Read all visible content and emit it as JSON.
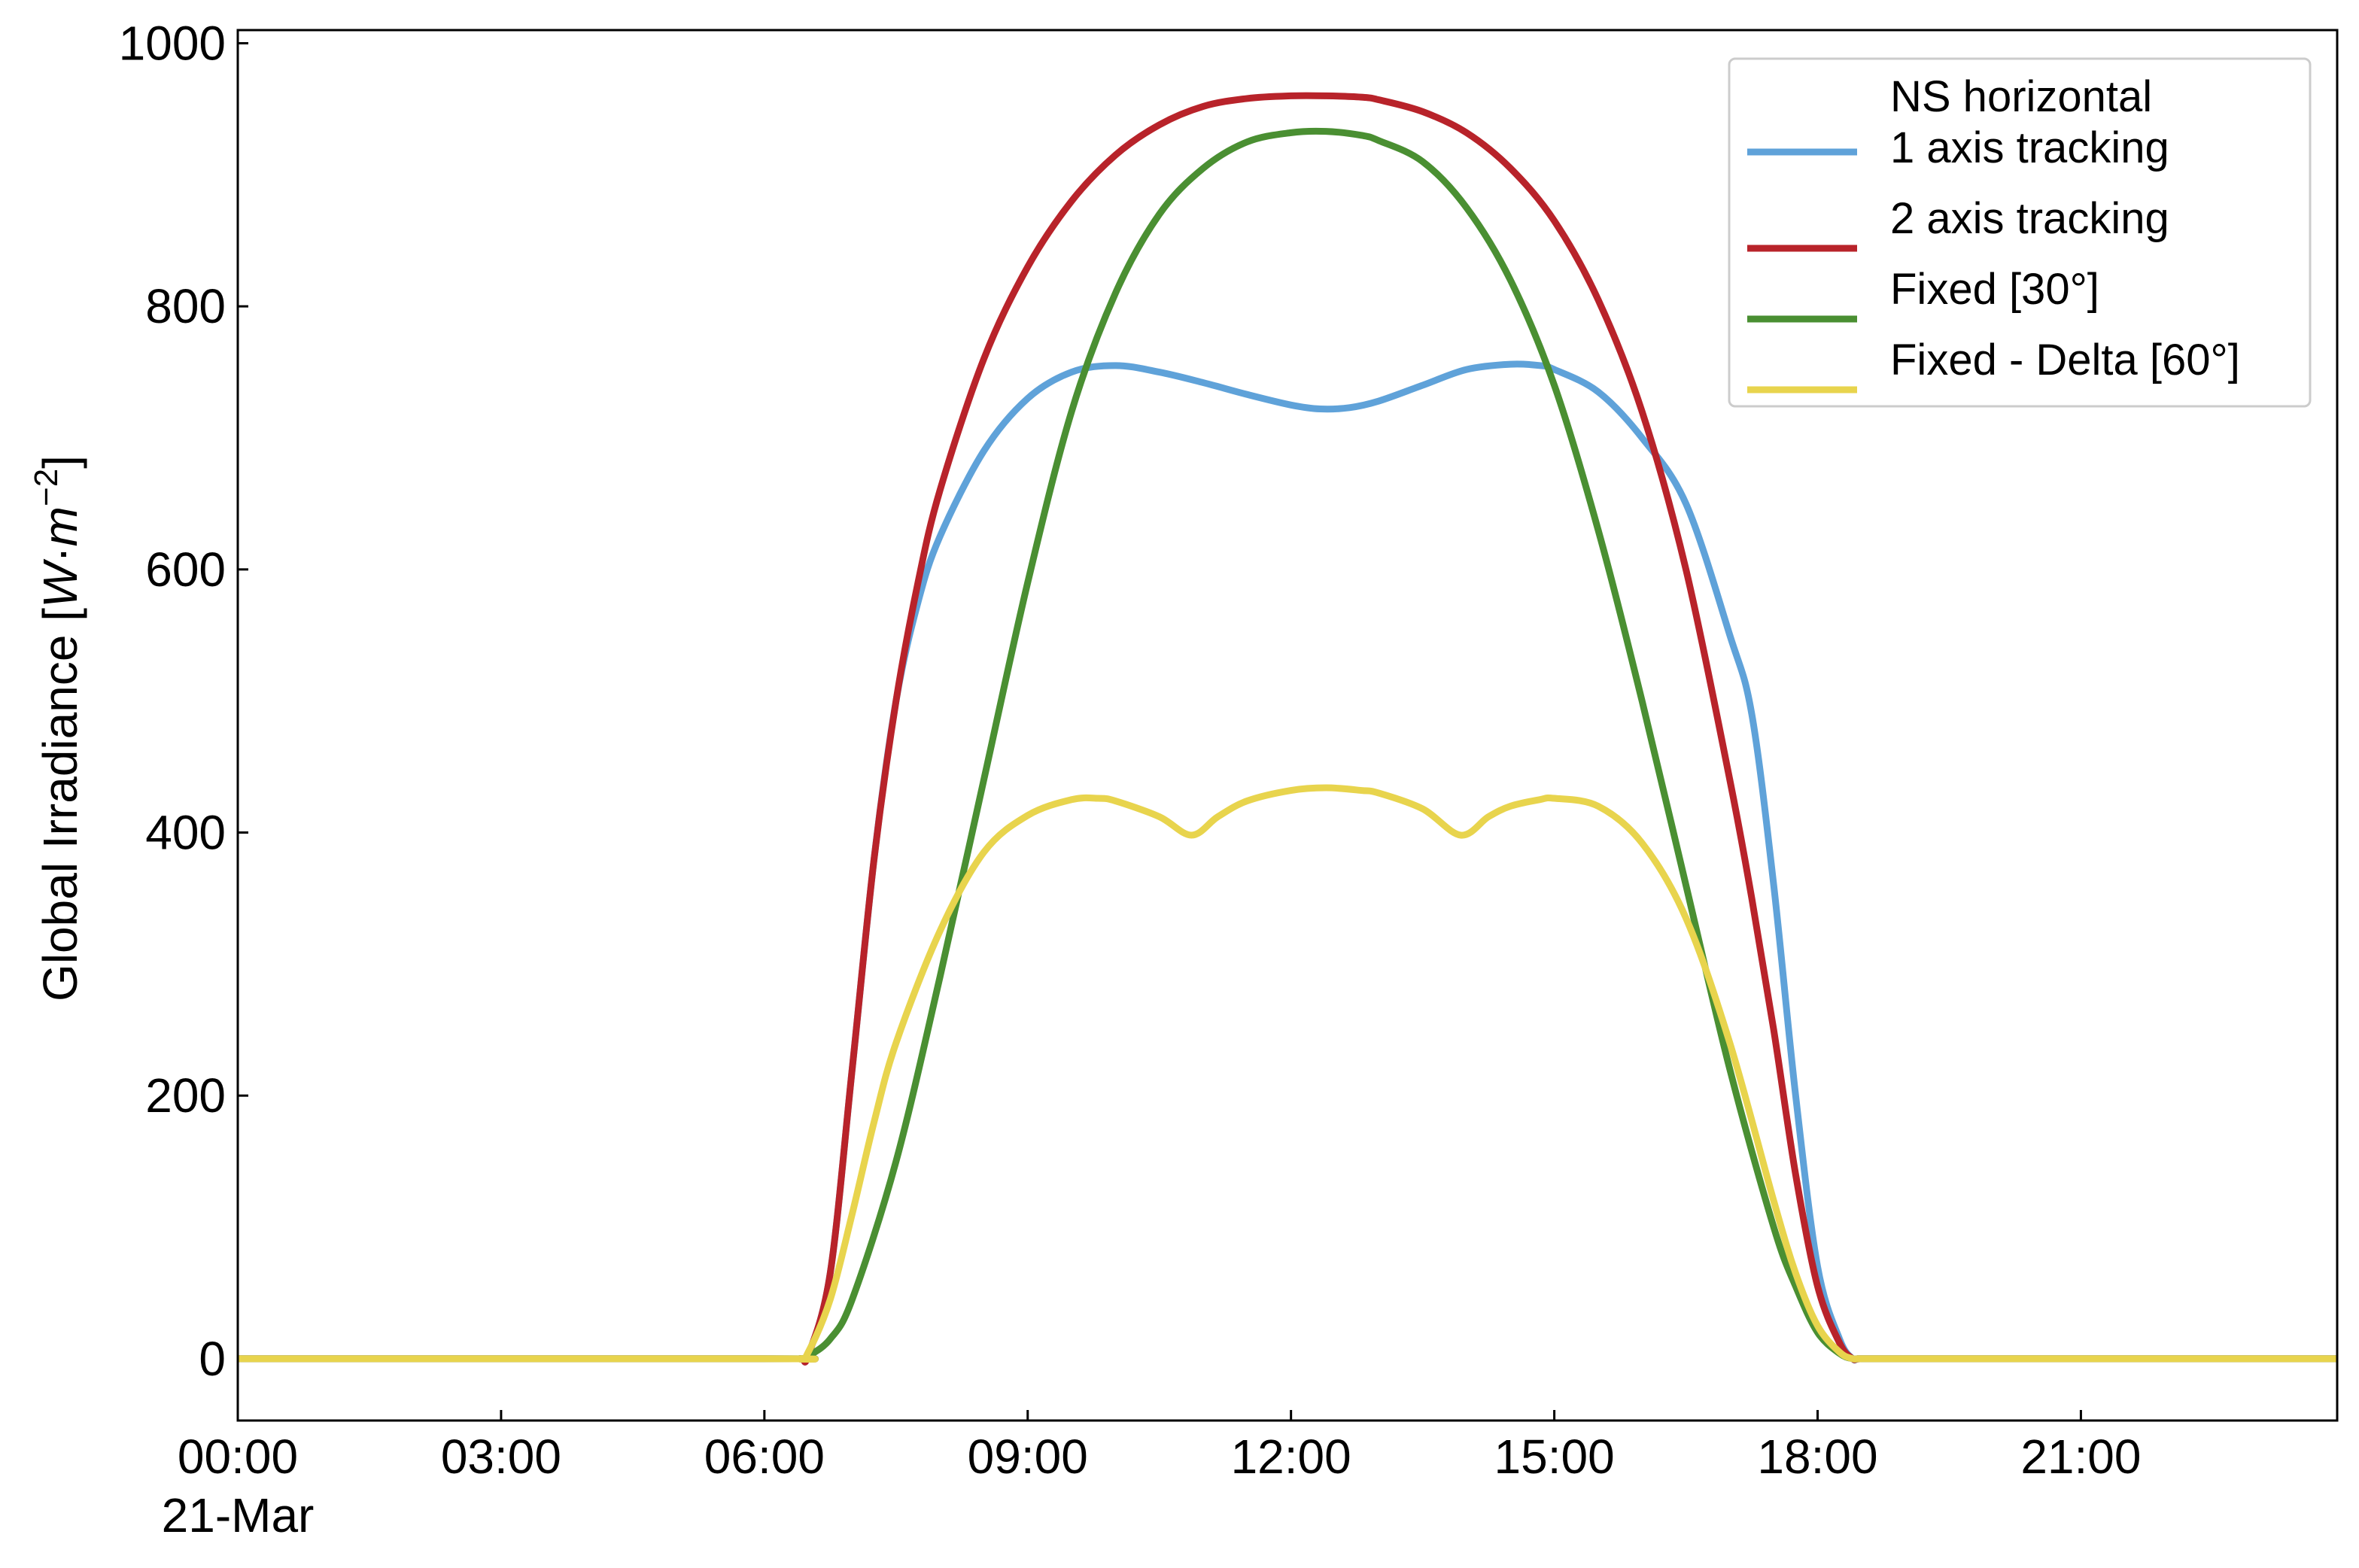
{
  "chart_data": {
    "type": "line",
    "xlabel": "",
    "ylabel_text": "Global Irradiance [",
    "ylabel_unit_W": "W",
    "ylabel_dot": "·",
    "ylabel_unit_m": "m",
    "ylabel_exp": "−2",
    "ylabel_close": "]",
    "ylim": [
      -47,
      1010
    ],
    "xlim_hours": [
      0,
      23.92
    ],
    "yticks": [
      0,
      200,
      400,
      600,
      800,
      1000
    ],
    "ytick_labels": [
      "0",
      "200",
      "400",
      "600",
      "800",
      "1000"
    ],
    "xticks_hours": [
      0,
      3,
      6,
      9,
      12,
      15,
      18,
      21
    ],
    "xtick_labels": [
      "00:00",
      "03:00",
      "06:00",
      "09:00",
      "12:00",
      "15:00",
      "18:00",
      "21:00"
    ],
    "xtick_sublabel": "21-Mar",
    "legend_position": "top-right",
    "grid": false,
    "series": [
      {
        "name": "NS horizontal\n1 axis tracking",
        "legend_lines": [
          "NS horizontal",
          "1 axis tracking"
        ],
        "color": "#5fa2d9",
        "x": [
          "06:00",
          "06:24",
          "06:30",
          "06:45",
          "07:00",
          "07:15",
          "07:30",
          "07:45",
          "08:00",
          "08:30",
          "09:00",
          "09:30",
          "10:00",
          "10:30",
          "11:00",
          "11:30",
          "12:00",
          "12:20",
          "12:40",
          "13:00",
          "13:30",
          "14:00",
          "14:30",
          "14:50",
          "15:00",
          "15:30",
          "16:00",
          "16:30",
          "17:00",
          "17:15",
          "17:30",
          "17:45",
          "18:00",
          "18:15",
          "18:24",
          "18:30",
          "19:00"
        ],
        "values": [
          0,
          0,
          3,
          65,
          220,
          380,
          500,
          575,
          625,
          690,
          730,
          750,
          755,
          750,
          742,
          733,
          725,
          722,
          723,
          728,
          740,
          752,
          756,
          755,
          752,
          735,
          700,
          650,
          550,
          490,
          360,
          200,
          70,
          15,
          0,
          0,
          0
        ]
      },
      {
        "name": "2 axis tracking",
        "legend_lines": [
          "2 axis tracking"
        ],
        "color": "#b8232a",
        "x": [
          "06:00",
          "06:24",
          "06:30",
          "06:45",
          "07:00",
          "07:15",
          "07:30",
          "07:45",
          "08:00",
          "08:30",
          "09:00",
          "09:30",
          "10:00",
          "10:30",
          "11:00",
          "11:30",
          "12:00",
          "12:24",
          "12:48",
          "13:00",
          "13:30",
          "14:00",
          "14:30",
          "15:00",
          "15:30",
          "16:00",
          "16:30",
          "17:00",
          "17:15",
          "17:30",
          "17:45",
          "18:00",
          "18:15",
          "18:24",
          "18:30",
          "19:00"
        ],
        "values": [
          0,
          0,
          3,
          65,
          220,
          380,
          500,
          590,
          660,
          760,
          830,
          880,
          915,
          938,
          952,
          958,
          960,
          960,
          959,
          957,
          948,
          932,
          905,
          865,
          805,
          720,
          600,
          440,
          350,
          250,
          140,
          55,
          12,
          0,
          0,
          0
        ]
      },
      {
        "name": "Fixed [30°]",
        "legend_lines": [
          "Fixed [30°]"
        ],
        "color": "#4a8f32",
        "x": [
          "06:00",
          "06:24",
          "06:30",
          "06:45",
          "07:00",
          "07:30",
          "08:00",
          "08:30",
          "09:00",
          "09:30",
          "10:00",
          "10:30",
          "11:00",
          "11:30",
          "12:00",
          "12:24",
          "12:48",
          "13:00",
          "13:30",
          "14:00",
          "14:30",
          "15:00",
          "15:30",
          "16:00",
          "16:30",
          "17:00",
          "17:30",
          "17:45",
          "18:00",
          "18:15",
          "18:24",
          "18:30",
          "19:00"
        ],
        "values": [
          0,
          0,
          2,
          15,
          45,
          150,
          290,
          440,
          590,
          720,
          810,
          870,
          905,
          925,
          932,
          933,
          930,
          926,
          910,
          875,
          820,
          740,
          630,
          500,
          360,
          220,
          100,
          55,
          20,
          4,
          0,
          0,
          0
        ]
      },
      {
        "name": "Fixed - Delta [60°]",
        "legend_lines": [
          "Fixed - Delta [60°]"
        ],
        "color": "#e8d44d",
        "x": [
          "06:00",
          "06:24",
          "06:30",
          "06:45",
          "07:00",
          "07:15",
          "07:30",
          "08:00",
          "08:30",
          "09:00",
          "09:30",
          "09:48",
          "10:00",
          "10:30",
          "10:52",
          "11:10",
          "11:30",
          "12:00",
          "12:24",
          "12:48",
          "13:00",
          "13:30",
          "13:56",
          "14:15",
          "14:30",
          "14:50",
          "15:00",
          "15:30",
          "16:00",
          "16:30",
          "17:00",
          "17:30",
          "17:45",
          "18:00",
          "18:15",
          "18:24",
          "18:30",
          "19:00"
        ],
        "values": [
          0,
          0,
          5,
          45,
          110,
          180,
          240,
          325,
          385,
          413,
          425,
          426,
          424,
          412,
          398,
          412,
          424,
          432,
          434,
          432,
          430,
          418,
          398,
          412,
          420,
          425,
          426,
          420,
          392,
          335,
          240,
          120,
          65,
          25,
          5,
          0,
          0,
          0
        ]
      }
    ]
  }
}
